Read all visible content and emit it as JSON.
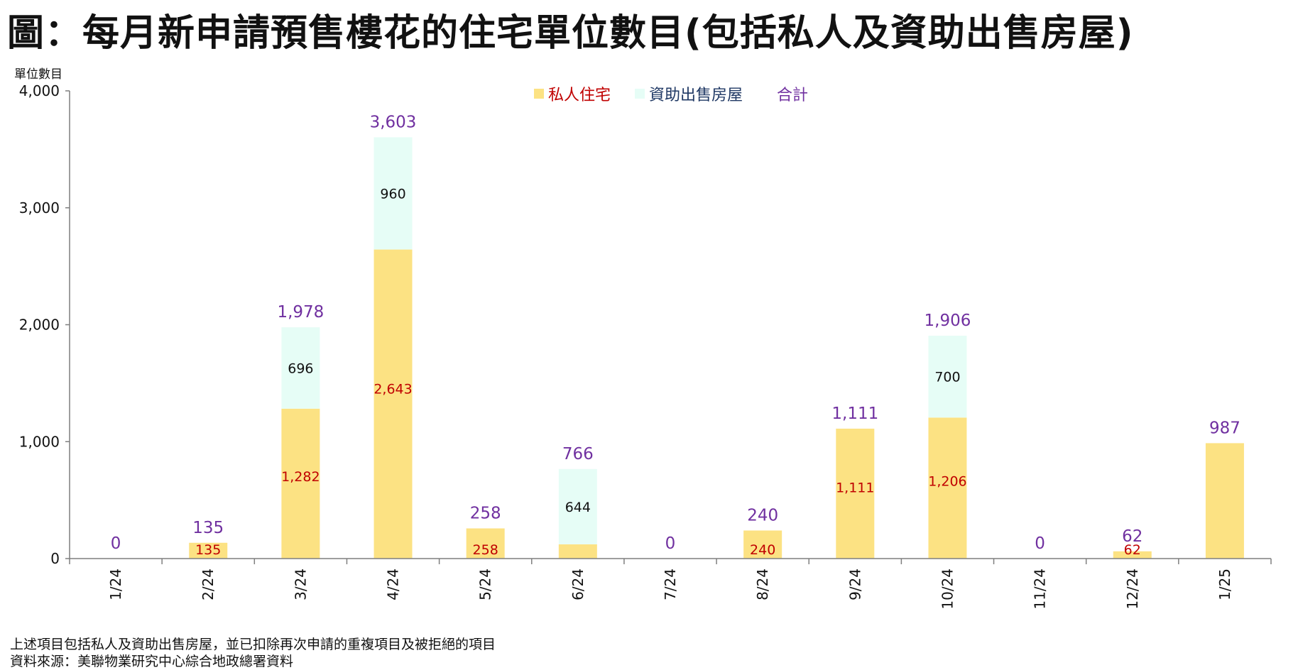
{
  "title": "圖：每月新申請預售樓花的住宅單位數目(包括私人及資助出售房屋)",
  "colors": {
    "private": "#fce283",
    "subsidized": "#e6fdf6",
    "private_label": "#c00000",
    "subsidized_label": "#1f3864",
    "total_label": "#7030a0",
    "axis": "#7f7f7f"
  },
  "footer": {
    "note": "上述項目包括私人及資助出售房屋，並已扣除再次申請的重複項目及被拒絕的項目",
    "source": "資料來源：美聯物業研究中心綜合地政總署資料"
  },
  "chart_data": {
    "type": "bar",
    "stacked": true,
    "ylabel": "單位數目",
    "ylim": [
      0,
      4000
    ],
    "yticks": [
      "0",
      "1,000",
      "2,000",
      "3,000",
      "4,000"
    ],
    "grid": false,
    "legend_position": "top-center",
    "categories": [
      "1/24",
      "2/24",
      "3/24",
      "4/24",
      "5/24",
      "6/24",
      "7/24",
      "8/24",
      "9/24",
      "10/24",
      "11/24",
      "12/24",
      "1/25"
    ],
    "series": [
      {
        "name": "私人住宅",
        "values": [
          0,
          135,
          1282,
          2643,
          258,
          122,
          0,
          240,
          1111,
          1206,
          0,
          62,
          987
        ],
        "labels": [
          "",
          "135",
          "1,282",
          "2,643",
          "258",
          "",
          "",
          "240",
          "1,111",
          "1,206",
          "",
          "62",
          ""
        ]
      },
      {
        "name": "資助出售房屋",
        "values": [
          0,
          0,
          696,
          960,
          0,
          644,
          0,
          0,
          0,
          700,
          0,
          0,
          0
        ],
        "labels": [
          "",
          "",
          "696",
          "960",
          "",
          "644",
          "",
          "",
          "",
          "700",
          "",
          "",
          ""
        ]
      }
    ],
    "totals_name": "合計",
    "totals": [
      0,
      135,
      1978,
      3603,
      258,
      766,
      0,
      240,
      1111,
      1906,
      0,
      62,
      987
    ],
    "total_labels": [
      "0",
      "135",
      "1,978",
      "3,603",
      "258",
      "766",
      "0",
      "240",
      "1,111",
      "1,906",
      "0",
      "62",
      "987"
    ]
  }
}
